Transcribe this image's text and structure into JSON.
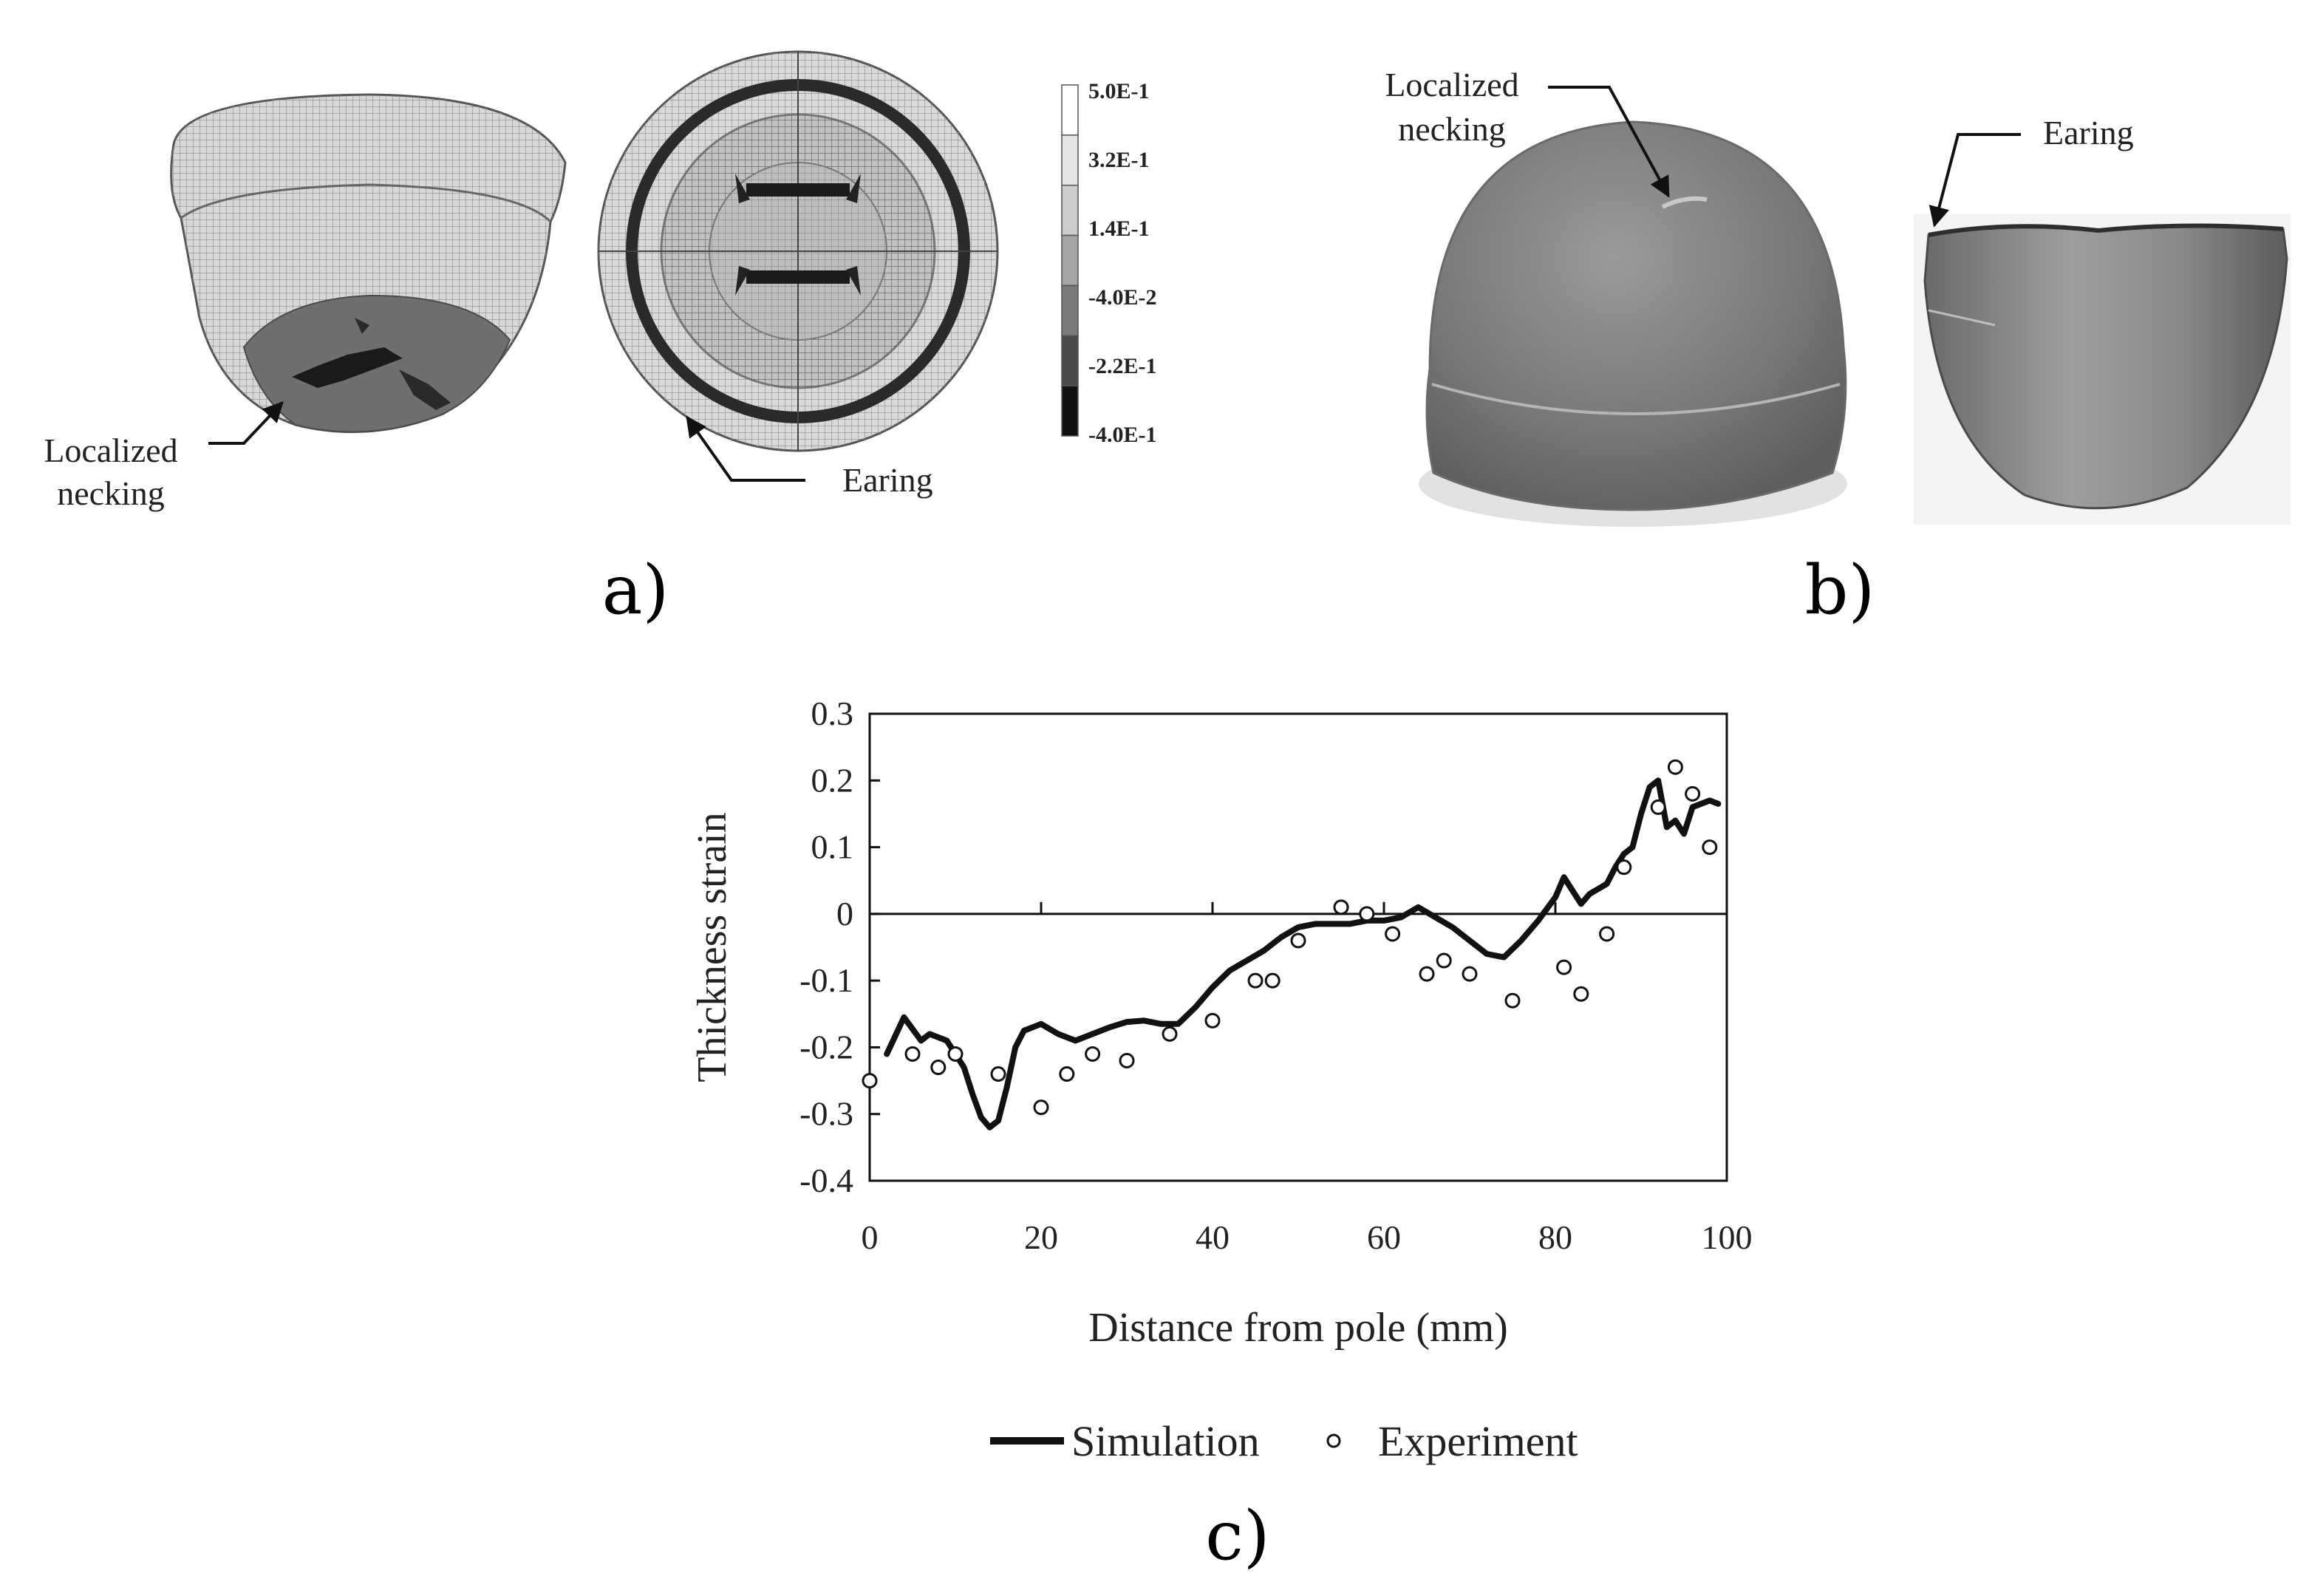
{
  "panel_a": {
    "label": "a)",
    "annotation_necking": [
      "Localized",
      "necking"
    ],
    "annotation_earing": "Earing",
    "colorbar": {
      "ticks": [
        "5.0E-1",
        "3.2E-1",
        "1.4E-1",
        "-4.0E-2",
        "-2.2E-1",
        "-4.0E-1"
      ],
      "colors": [
        "#ffffff",
        "#e6e6e6",
        "#cccccc",
        "#a6a6a6",
        "#7a7a7a",
        "#4a4a4a",
        "#111111"
      ]
    }
  },
  "panel_b": {
    "label": "b)",
    "annotation_necking": [
      "Localized",
      "necking"
    ],
    "annotation_earing": "Earing"
  },
  "panel_c": {
    "label": "c)"
  },
  "chart_data": {
    "type": "line",
    "title": "",
    "xlabel": "Distance from pole (mm)",
    "ylabel": "Thickness strain",
    "xlim": [
      0,
      100
    ],
    "ylim": [
      -0.4,
      0.3
    ],
    "xticks": [
      0,
      20,
      40,
      60,
      80,
      100
    ],
    "yticks": [
      0.3,
      0.2,
      0.1,
      0,
      -0.1,
      -0.2,
      -0.3,
      -0.4
    ],
    "ytick_labels": [
      "0.3",
      "0.2",
      "0.1",
      "0",
      "-0.1",
      "-0.2",
      "-0.3",
      "-0.4"
    ],
    "xtick_labels": [
      "0",
      "20",
      "40",
      "60",
      "80",
      "100"
    ],
    "grid": false,
    "zero_line": true,
    "legend_placement": "bottom",
    "series": [
      {
        "name": "Simulation",
        "style": "line",
        "x": [
          2,
          4,
          6,
          7,
          9,
          11,
          12,
          13,
          14,
          15,
          16,
          17,
          18,
          20,
          22,
          24,
          26,
          28,
          30,
          32,
          34,
          36,
          38,
          40,
          42,
          44,
          46,
          48,
          50,
          52,
          54,
          56,
          58,
          60,
          62,
          64,
          66,
          68,
          70,
          72,
          74,
          76,
          78,
          80,
          81,
          82,
          83,
          84,
          86,
          87,
          88,
          89,
          90,
          91,
          92,
          93,
          94,
          95,
          96,
          97,
          98,
          99
        ],
        "y": [
          -0.21,
          -0.155,
          -0.19,
          -0.18,
          -0.19,
          -0.23,
          -0.27,
          -0.305,
          -0.32,
          -0.31,
          -0.26,
          -0.2,
          -0.175,
          -0.165,
          -0.18,
          -0.19,
          -0.18,
          -0.17,
          -0.162,
          -0.16,
          -0.165,
          -0.165,
          -0.14,
          -0.11,
          -0.085,
          -0.07,
          -0.055,
          -0.035,
          -0.02,
          -0.015,
          -0.015,
          -0.015,
          -0.01,
          -0.01,
          -0.005,
          0.01,
          -0.005,
          -0.02,
          -0.04,
          -0.06,
          -0.065,
          -0.04,
          -0.01,
          0.025,
          0.055,
          0.035,
          0.015,
          0.03,
          0.045,
          0.07,
          0.09,
          0.1,
          0.15,
          0.19,
          0.2,
          0.13,
          0.14,
          0.12,
          0.16,
          0.165,
          0.17,
          0.165
        ]
      },
      {
        "name": "Experiment",
        "style": "markers",
        "x": [
          0,
          5,
          8,
          10,
          15,
          20,
          23,
          26,
          30,
          35,
          40,
          45,
          47,
          50,
          55,
          58,
          61,
          65,
          67,
          70,
          75,
          81,
          83,
          86,
          88,
          92,
          94,
          96,
          98
        ],
        "y": [
          -0.25,
          -0.21,
          -0.23,
          -0.21,
          -0.24,
          -0.29,
          -0.24,
          -0.21,
          -0.22,
          -0.18,
          -0.16,
          -0.1,
          -0.1,
          -0.04,
          0.01,
          0.0,
          -0.03,
          -0.09,
          -0.07,
          -0.09,
          -0.13,
          -0.08,
          -0.12,
          -0.03,
          0.07,
          0.16,
          0.22,
          0.18,
          0.1
        ]
      }
    ]
  }
}
